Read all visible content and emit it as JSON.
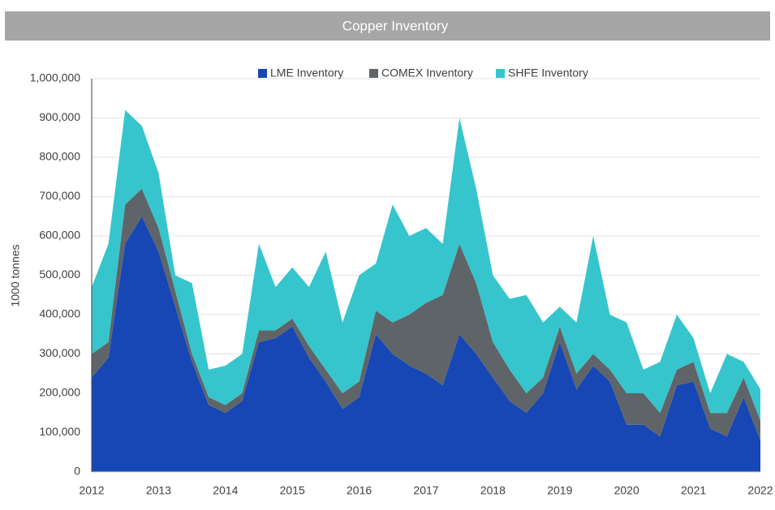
{
  "chart_data": {
    "type": "stacked_area",
    "title": "Copper Inventory",
    "ylabel": "1000 tonnes",
    "x": [
      2012,
      2012.25,
      2012.5,
      2012.75,
      2013,
      2013.25,
      2013.5,
      2013.75,
      2014,
      2014.25,
      2014.5,
      2014.75,
      2015,
      2015.25,
      2015.5,
      2015.75,
      2016,
      2016.25,
      2016.5,
      2016.75,
      2017,
      2017.25,
      2017.5,
      2017.75,
      2018,
      2018.25,
      2018.5,
      2018.75,
      2019,
      2019.25,
      2019.5,
      2019.75,
      2020,
      2020.25,
      2020.5,
      2020.75,
      2021,
      2021.25,
      2021.5,
      2021.75,
      2022
    ],
    "series": [
      {
        "name": "LME Inventory",
        "color": "#1747b5",
        "values": [
          240000,
          290000,
          580000,
          650000,
          560000,
          420000,
          280000,
          170000,
          150000,
          180000,
          330000,
          340000,
          370000,
          290000,
          230000,
          160000,
          190000,
          350000,
          300000,
          270000,
          250000,
          220000,
          350000,
          300000,
          240000,
          180000,
          150000,
          200000,
          330000,
          210000,
          270000,
          230000,
          120000,
          120000,
          90000,
          220000,
          230000,
          110000,
          90000,
          190000,
          80000
        ]
      },
      {
        "name": "COMEX Inventory",
        "color": "#5f6469",
        "values": [
          60000,
          40000,
          100000,
          70000,
          60000,
          40000,
          20000,
          20000,
          20000,
          20000,
          30000,
          20000,
          20000,
          30000,
          30000,
          40000,
          40000,
          60000,
          80000,
          130000,
          180000,
          230000,
          230000,
          180000,
          90000,
          80000,
          50000,
          40000,
          40000,
          40000,
          30000,
          30000,
          80000,
          80000,
          60000,
          40000,
          50000,
          40000,
          60000,
          50000,
          50000
        ]
      },
      {
        "name": "SHFE Inventory",
        "color": "#36c5cc",
        "values": [
          170000,
          250000,
          240000,
          160000,
          140000,
          40000,
          180000,
          70000,
          100000,
          100000,
          220000,
          110000,
          130000,
          150000,
          300000,
          180000,
          270000,
          120000,
          300000,
          200000,
          190000,
          130000,
          320000,
          240000,
          170000,
          180000,
          250000,
          140000,
          50000,
          130000,
          300000,
          140000,
          180000,
          60000,
          130000,
          140000,
          60000,
          50000,
          150000,
          40000,
          80000
        ]
      }
    ],
    "xlim": [
      2012,
      2022
    ],
    "xticks": [
      2012,
      2013,
      2014,
      2015,
      2016,
      2017,
      2018,
      2019,
      2020,
      2021,
      2022
    ],
    "ylim": [
      0,
      1000000
    ],
    "yticks": [
      0,
      {
        "value": 100000,
        "label": "100,000"
      },
      {
        "value": 200000,
        "label": "200,000"
      },
      {
        "value": 300000,
        "label": "300,000"
      },
      {
        "value": 400000,
        "label": "400,000"
      },
      {
        "value": 500000,
        "label": "500,000"
      },
      {
        "value": 600000,
        "label": "600,000"
      },
      {
        "value": 700000,
        "label": "700,000"
      },
      {
        "value": 800000,
        "label": "800,000"
      },
      {
        "value": 900000,
        "label": "900,000"
      },
      {
        "value": 1000000,
        "label": "1,000,000"
      }
    ],
    "grid": true,
    "legend": "top"
  }
}
